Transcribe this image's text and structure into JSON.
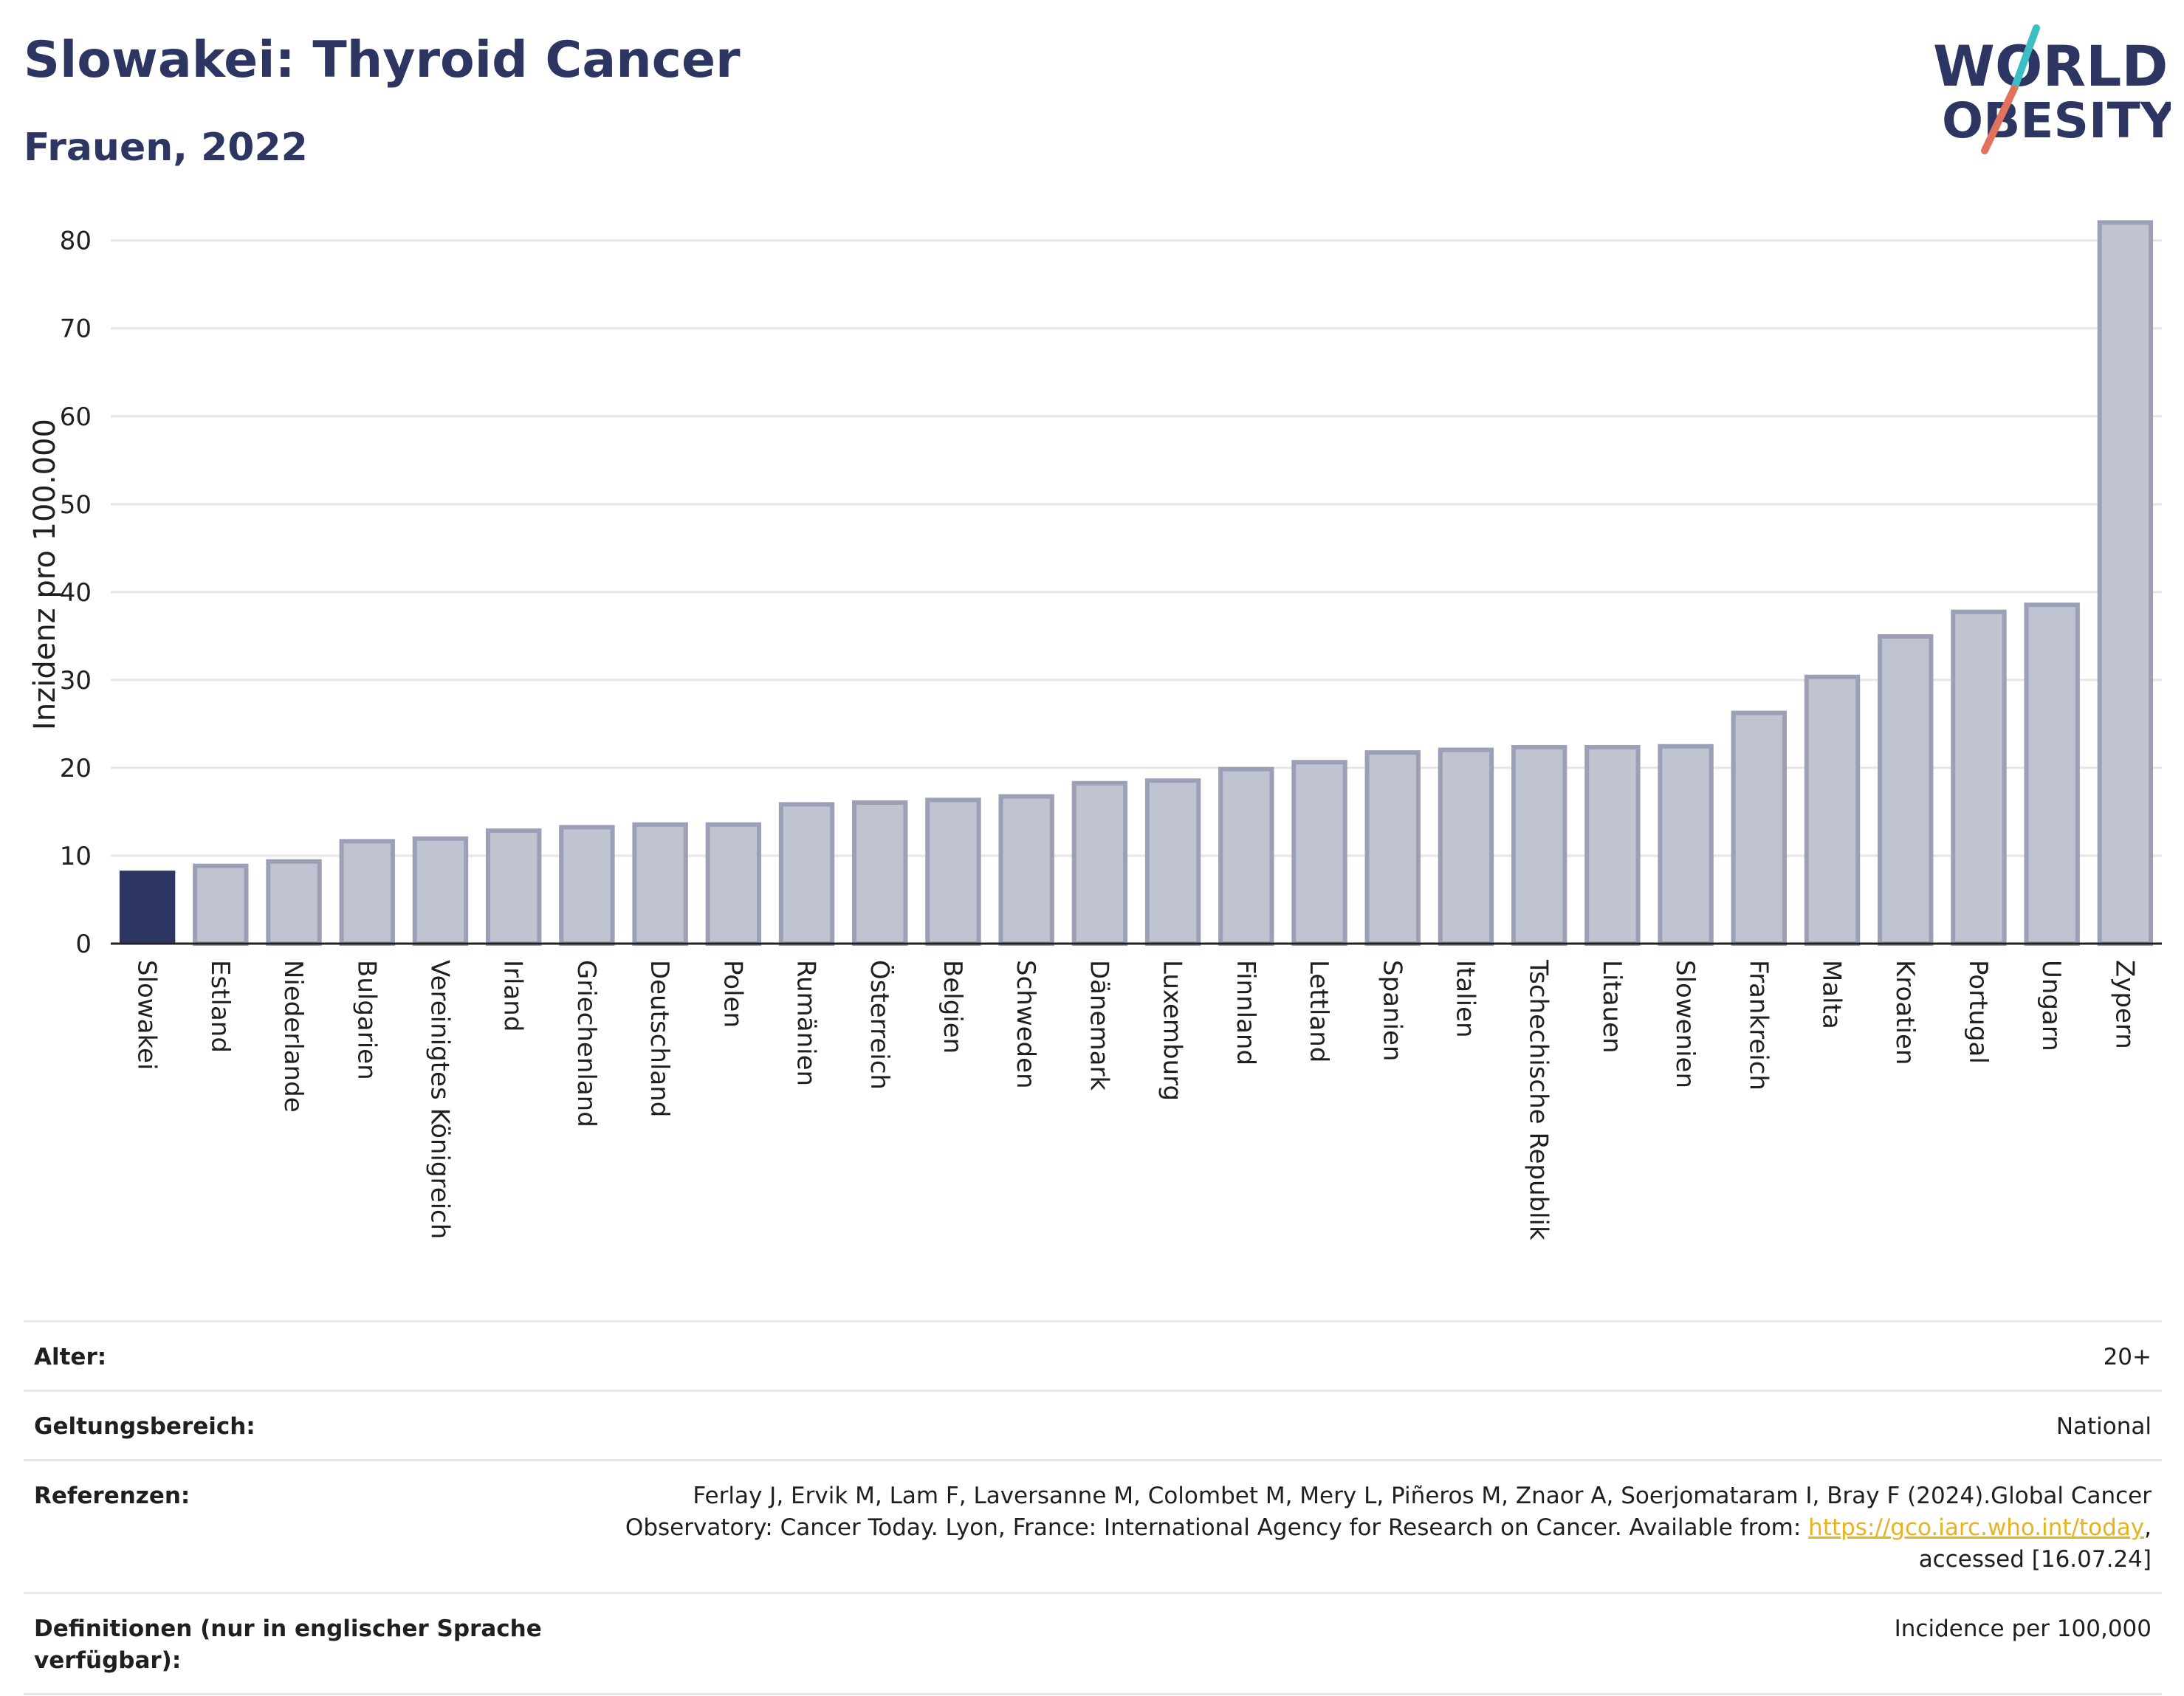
{
  "header": {
    "title": "Slowakei: Thyroid Cancer",
    "subtitle": "Frauen, 2022"
  },
  "logo": {
    "line1": "WORLD",
    "line2": "OBESITY",
    "colors": {
      "text": "#2d3663",
      "slash_top": "#3bbfc4",
      "slash_bottom": "#e2725b"
    }
  },
  "colors": {
    "highlight_bar": "#2d3663",
    "other_bar_fill": "#c0c3d0",
    "other_bar_stroke": "#9ba0b7",
    "grid": "#e6e6e6",
    "axis": "#222222"
  },
  "chart_data": {
    "type": "bar",
    "title": "Slowakei: Thyroid Cancer",
    "subtitle": "Frauen, 2022",
    "ylabel": "Inzidenz pro 100.000",
    "xlabel": "",
    "ylim": [
      0,
      83
    ],
    "yticks": [
      0,
      10,
      20,
      30,
      40,
      50,
      60,
      70,
      80
    ],
    "grid": true,
    "highlight": "Slowakei",
    "categories": [
      "Slowakei",
      "Estland",
      "Niederlande",
      "Bulgarien",
      "Vereinigtes Königreich",
      "Irland",
      "Griechenland",
      "Deutschland",
      "Polen",
      "Rumänien",
      "Österreich",
      "Belgien",
      "Schweden",
      "Dänemark",
      "Luxemburg",
      "Finnland",
      "Lettland",
      "Spanien",
      "Italien",
      "Tschechische Republik",
      "Litauen",
      "Slowenien",
      "Frankreich",
      "Malta",
      "Kroatien",
      "Portugal",
      "Ungarn",
      "Zypern"
    ],
    "values": [
      8.3,
      9.1,
      9.6,
      11.9,
      12.2,
      13.1,
      13.5,
      13.8,
      13.8,
      16.1,
      16.3,
      16.6,
      17.0,
      18.5,
      18.8,
      20.1,
      20.9,
      22.0,
      22.3,
      22.6,
      22.6,
      22.7,
      26.5,
      30.6,
      35.2,
      38.0,
      38.8,
      82.3
    ]
  },
  "meta": [
    {
      "label": "Alter:",
      "value": "20+"
    },
    {
      "label": "Geltungsbereich:",
      "value": "National"
    },
    {
      "label": "Referenzen:",
      "value_pre": "Ferlay J, Ervik M, Lam F, Laversanne M, Colombet M, Mery L, Piñeros M, Znaor A, Soerjomataram I, Bray F (2024).Global Cancer Observatory: Cancer Today. Lyon, France: International Agency for Research on Cancer. Available from: ",
      "link": "https://gco.iarc.who.int/today",
      "value_post": ", accessed [16.07.24]"
    },
    {
      "label": "Definitionen (nur in englischer Sprache verfügbar):",
      "value": "Incidence per 100,000"
    }
  ]
}
